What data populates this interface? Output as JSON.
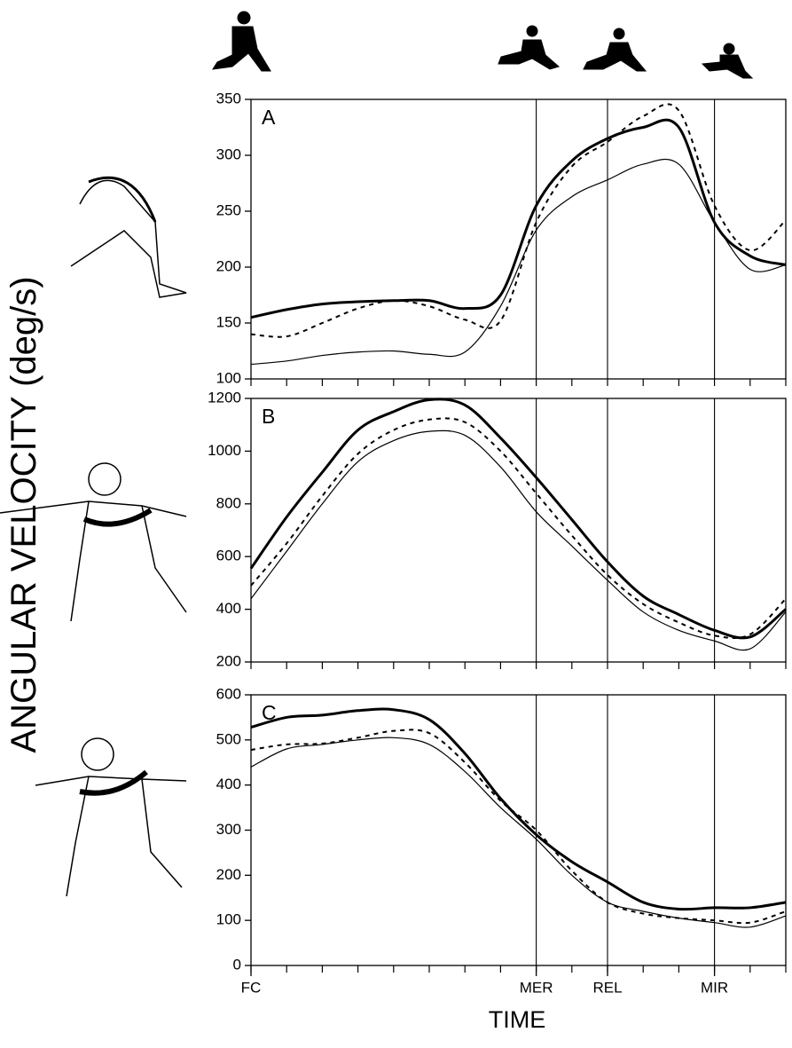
{
  "y_label": "ANGULAR VELOCITY (deg/s)",
  "x_label": "TIME",
  "chart_data": [
    {
      "type": "line",
      "label": "A",
      "x": [
        0,
        1,
        2,
        3,
        4,
        5,
        6,
        7,
        8,
        9,
        10,
        11,
        12,
        13,
        14,
        15
      ],
      "xlim": [
        0,
        15
      ],
      "ylim": [
        100,
        350
      ],
      "yticks": [
        100,
        150,
        200,
        250,
        300,
        350
      ],
      "vlines": [
        8,
        10,
        13
      ],
      "series": [
        {
          "color": "#000",
          "line_width": 3,
          "dash": false,
          "values": [
            155,
            162,
            167,
            169,
            170,
            170,
            163,
            175,
            255,
            295,
            315,
            325,
            325,
            240,
            210,
            202
          ]
        },
        {
          "color": "#000",
          "line_width": 2,
          "dash": true,
          "values": [
            140,
            138,
            150,
            163,
            170,
            165,
            153,
            152,
            240,
            290,
            312,
            335,
            340,
            255,
            215,
            242
          ]
        },
        {
          "color": "#000",
          "line_width": 1.2,
          "dash": false,
          "values": [
            113,
            116,
            121,
            124,
            125,
            122,
            124,
            165,
            233,
            263,
            278,
            292,
            292,
            240,
            198,
            202
          ]
        }
      ]
    },
    {
      "type": "line",
      "label": "B",
      "x": [
        0,
        1,
        2,
        3,
        4,
        5,
        6,
        7,
        8,
        9,
        10,
        11,
        12,
        13,
        14,
        15
      ],
      "xlim": [
        0,
        15
      ],
      "ylim": [
        200,
        1200
      ],
      "yticks": [
        200,
        400,
        600,
        800,
        1000,
        1200
      ],
      "vlines": [
        8,
        10,
        13
      ],
      "series": [
        {
          "color": "#000",
          "line_width": 3,
          "dash": false,
          "values": [
            555,
            750,
            920,
            1080,
            1150,
            1195,
            1175,
            1050,
            900,
            740,
            580,
            450,
            380,
            320,
            295,
            400
          ]
        },
        {
          "color": "#000",
          "line_width": 2,
          "dash": true,
          "values": [
            490,
            650,
            830,
            990,
            1080,
            1120,
            1110,
            1000,
            840,
            680,
            530,
            420,
            350,
            300,
            305,
            440
          ]
        },
        {
          "color": "#000",
          "line_width": 1.2,
          "dash": false,
          "values": [
            440,
            620,
            800,
            960,
            1040,
            1075,
            1060,
            940,
            770,
            640,
            510,
            390,
            320,
            280,
            250,
            390
          ]
        }
      ]
    },
    {
      "type": "line",
      "label": "C",
      "x": [
        0,
        1,
        2,
        3,
        4,
        5,
        6,
        7,
        8,
        9,
        10,
        11,
        12,
        13,
        14,
        15
      ],
      "xlim": [
        0,
        15
      ],
      "ylim": [
        0,
        600
      ],
      "yticks": [
        0,
        100,
        200,
        300,
        400,
        500,
        600
      ],
      "vlines": [
        8,
        10,
        13
      ],
      "xticks": [
        {
          "value": 0,
          "label": "FC"
        },
        {
          "value": 8,
          "label": "MER"
        },
        {
          "value": 10,
          "label": "REL"
        },
        {
          "value": 13,
          "label": "MIR"
        }
      ],
      "series": [
        {
          "color": "#000",
          "line_width": 3,
          "dash": false,
          "values": [
            528,
            550,
            555,
            565,
            567,
            545,
            470,
            370,
            290,
            230,
            185,
            140,
            125,
            128,
            128,
            140
          ]
        },
        {
          "color": "#000",
          "line_width": 2,
          "dash": true,
          "values": [
            478,
            490,
            492,
            505,
            520,
            515,
            450,
            365,
            300,
            210,
            140,
            115,
            105,
            100,
            95,
            120
          ]
        },
        {
          "color": "#000",
          "line_width": 1.2,
          "dash": false,
          "values": [
            440,
            480,
            490,
            500,
            505,
            490,
            430,
            350,
            280,
            200,
            140,
            120,
            105,
            95,
            85,
            110
          ]
        }
      ]
    }
  ]
}
